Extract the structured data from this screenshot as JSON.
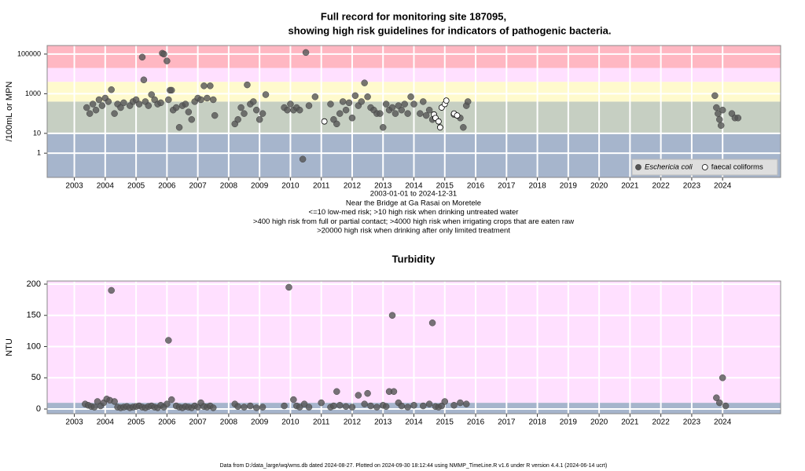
{
  "chart_data": [
    {
      "type": "scatter",
      "title": [
        "Full record for monitoring site 187095,",
        "showing high risk guidelines for indicators of pathogenic bacteria."
      ],
      "y_label": "/100mL or MPN",
      "log_y": true,
      "xlim": [
        2002.12,
        2025.88
      ],
      "xticks": [
        2003,
        2004,
        2005,
        2006,
        2007,
        2008,
        2009,
        2010,
        2011,
        2012,
        2013,
        2014,
        2015,
        2016,
        2017,
        2018,
        2019,
        2020,
        2021,
        2022,
        2023,
        2024
      ],
      "ylim": [
        0.06,
        270000
      ],
      "yticks": [
        1,
        10,
        1000,
        100000
      ],
      "band_breaks": [
        10,
        400,
        4000,
        20000
      ],
      "band_colors": [
        "#a6b5cc",
        "#c6cfc2",
        "#fffacd",
        "#ffe0ff",
        "#ffb7c2"
      ],
      "grid": true,
      "legend": "bottom-right",
      "annotations": [
        "2003-01-01 to 2024-12-31",
        "Near the Bridge at Ga Rasai on Moretele",
        "<=10 low-med risk; >10 high risk when drinking untreated water",
        ">400 high risk from full or partial contact; >4000 high risk when irrigating crops that are eaten raw",
        ">20000 high risk when drinking after only limited treatment"
      ],
      "series": [
        {
          "name": "Eschericia coli",
          "color": "#555555",
          "x": [
            2003.4,
            2003.5,
            2003.6,
            2003.7,
            2003.8,
            2003.9,
            2004.0,
            2004.1,
            2004.2,
            2004.3,
            2004.4,
            2004.5,
            2004.6,
            2004.8,
            2004.9,
            2005.0,
            2005.1,
            2005.2,
            2005.25,
            2005.3,
            2005.4,
            2005.5,
            2005.6,
            2005.7,
            2005.8,
            2005.85,
            2005.9,
            2006.0,
            2006.05,
            2006.1,
            2006.15,
            2006.2,
            2006.3,
            2006.4,
            2006.5,
            2006.6,
            2006.7,
            2006.8,
            2006.9,
            2007.0,
            2007.1,
            2007.2,
            2007.3,
            2007.4,
            2007.5,
            2007.55,
            2008.2,
            2008.3,
            2008.4,
            2008.5,
            2008.6,
            2008.7,
            2008.8,
            2008.9,
            2009.0,
            2009.1,
            2009.2,
            2009.8,
            2009.9,
            2010.0,
            2010.1,
            2010.2,
            2010.3,
            2010.4,
            2010.5,
            2010.6,
            2010.8,
            2011.3,
            2011.4,
            2011.5,
            2011.6,
            2011.7,
            2011.8,
            2011.9,
            2012.0,
            2012.1,
            2012.2,
            2012.3,
            2012.4,
            2012.5,
            2012.6,
            2012.7,
            2012.8,
            2012.9,
            2013.0,
            2013.1,
            2013.2,
            2013.3,
            2013.4,
            2013.5,
            2013.6,
            2013.7,
            2013.8,
            2013.9,
            2014.0,
            2014.2,
            2014.3,
            2014.4,
            2014.5,
            2014.6,
            2015.3,
            2015.5,
            2015.6,
            2015.7,
            2015.75,
            2023.75,
            2023.8,
            2023.85,
            2023.9,
            2023.95,
            2024.0,
            2024.3,
            2024.4,
            2024.5
          ],
          "values": [
            200,
            100,
            300,
            150,
            500,
            250,
            600,
            400,
            1600,
            100,
            300,
            200,
            350,
            250,
            400,
            500,
            300,
            70000,
            5000,
            400,
            250,
            900,
            500,
            300,
            350,
            110000,
            100000,
            45000,
            500,
            1500,
            1500,
            150,
            200,
            20,
            250,
            300,
            120,
            50,
            400,
            600,
            500,
            2500,
            600,
            2500,
            500,
            80,
            30,
            50,
            200,
            100,
            2800,
            300,
            400,
            150,
            50,
            100,
            900,
            200,
            150,
            300,
            150,
            200,
            150,
            0.5,
            120000,
            250,
            700,
            300,
            50,
            30,
            100,
            400,
            150,
            350,
            60,
            800,
            250,
            400,
            3500,
            700,
            200,
            150,
            100,
            100,
            20,
            300,
            150,
            200,
            100,
            250,
            150,
            300,
            100,
            700,
            300,
            100,
            400,
            80,
            150,
            50,
            90,
            60,
            20,
            250,
            400,
            800,
            200,
            100,
            50,
            25,
            150,
            100,
            60,
            60
          ]
        },
        {
          "name": "faecal coliforms",
          "color": "#ffffff",
          "x": [
            2011.1,
            2014.65,
            2014.7,
            2014.8,
            2014.85,
            2014.9,
            2015.0,
            2015.05,
            2015.3,
            2015.4
          ],
          "values": [
            40,
            90,
            60,
            40,
            20,
            200,
            300,
            450,
            100,
            80
          ]
        }
      ]
    },
    {
      "type": "scatter",
      "title": [
        "Turbidity"
      ],
      "y_label": "NTU",
      "log_y": false,
      "xlim": [
        2002.12,
        2025.88
      ],
      "xticks": [
        2003,
        2004,
        2005,
        2006,
        2007,
        2008,
        2009,
        2010,
        2011,
        2012,
        2013,
        2014,
        2015,
        2016,
        2017,
        2018,
        2019,
        2020,
        2021,
        2022,
        2023,
        2024
      ],
      "ylim": [
        -7.5,
        205
      ],
      "yticks": [
        0,
        50,
        100,
        150,
        200
      ],
      "band_breaks": [
        10
      ],
      "band_colors": [
        "#a6b5cc",
        "#ffe0ff"
      ],
      "grid": true,
      "series": [
        {
          "name": "Turbidity",
          "color": "#555555",
          "x": [
            2003.35,
            2003.45,
            2003.55,
            2003.65,
            2003.75,
            2003.85,
            2003.95,
            2004.05,
            2004.15,
            2004.2,
            2004.3,
            2004.4,
            2004.5,
            2004.6,
            2004.7,
            2004.8,
            2004.9,
            2005.0,
            2005.1,
            2005.2,
            2005.3,
            2005.4,
            2005.5,
            2005.6,
            2005.7,
            2005.8,
            2005.9,
            2006.0,
            2006.05,
            2006.15,
            2006.3,
            2006.4,
            2006.5,
            2006.6,
            2006.7,
            2006.8,
            2006.9,
            2007.0,
            2007.1,
            2007.2,
            2007.3,
            2007.4,
            2007.5,
            2008.2,
            2008.3,
            2008.5,
            2008.7,
            2008.9,
            2009.1,
            2009.8,
            2009.95,
            2010.1,
            2010.2,
            2010.3,
            2010.45,
            2010.6,
            2011.0,
            2011.3,
            2011.4,
            2011.5,
            2011.6,
            2011.8,
            2012.0,
            2012.2,
            2012.4,
            2012.5,
            2012.6,
            2012.8,
            2013.0,
            2013.1,
            2013.2,
            2013.3,
            2013.35,
            2013.5,
            2013.6,
            2013.8,
            2014.0,
            2014.3,
            2014.5,
            2014.6,
            2014.7,
            2014.8,
            2014.9,
            2015.0,
            2015.3,
            2015.5,
            2015.7,
            2023.8,
            2023.9,
            2024.0,
            2024.1
          ],
          "values": [
            8,
            6,
            4,
            3,
            12,
            5,
            10,
            16,
            14,
            190,
            12,
            3,
            2,
            3,
            4,
            2,
            3,
            4,
            5,
            3,
            2,
            4,
            5,
            3,
            2,
            6,
            3,
            8,
            110,
            15,
            5,
            3,
            2,
            4,
            3,
            2,
            5,
            3,
            10,
            4,
            3,
            5,
            2,
            8,
            4,
            3,
            5,
            2,
            3,
            5,
            195,
            15,
            5,
            3,
            8,
            3,
            10,
            3,
            5,
            28,
            6,
            4,
            3,
            22,
            8,
            25,
            5,
            3,
            6,
            4,
            28,
            150,
            28,
            10,
            5,
            3,
            6,
            5,
            8,
            138,
            4,
            3,
            5,
            12,
            6,
            10,
            8,
            18,
            10,
            50,
            5
          ]
        }
      ]
    }
  ],
  "footer": "Data from D:/data_large/wq/wms.db dated 2024-08-27. Plotted on 2024-09-30 18:12:44 using NMMP_TimeLine.R v1.6 under R version 4.4.1 (2024-06-14 ucrt)"
}
